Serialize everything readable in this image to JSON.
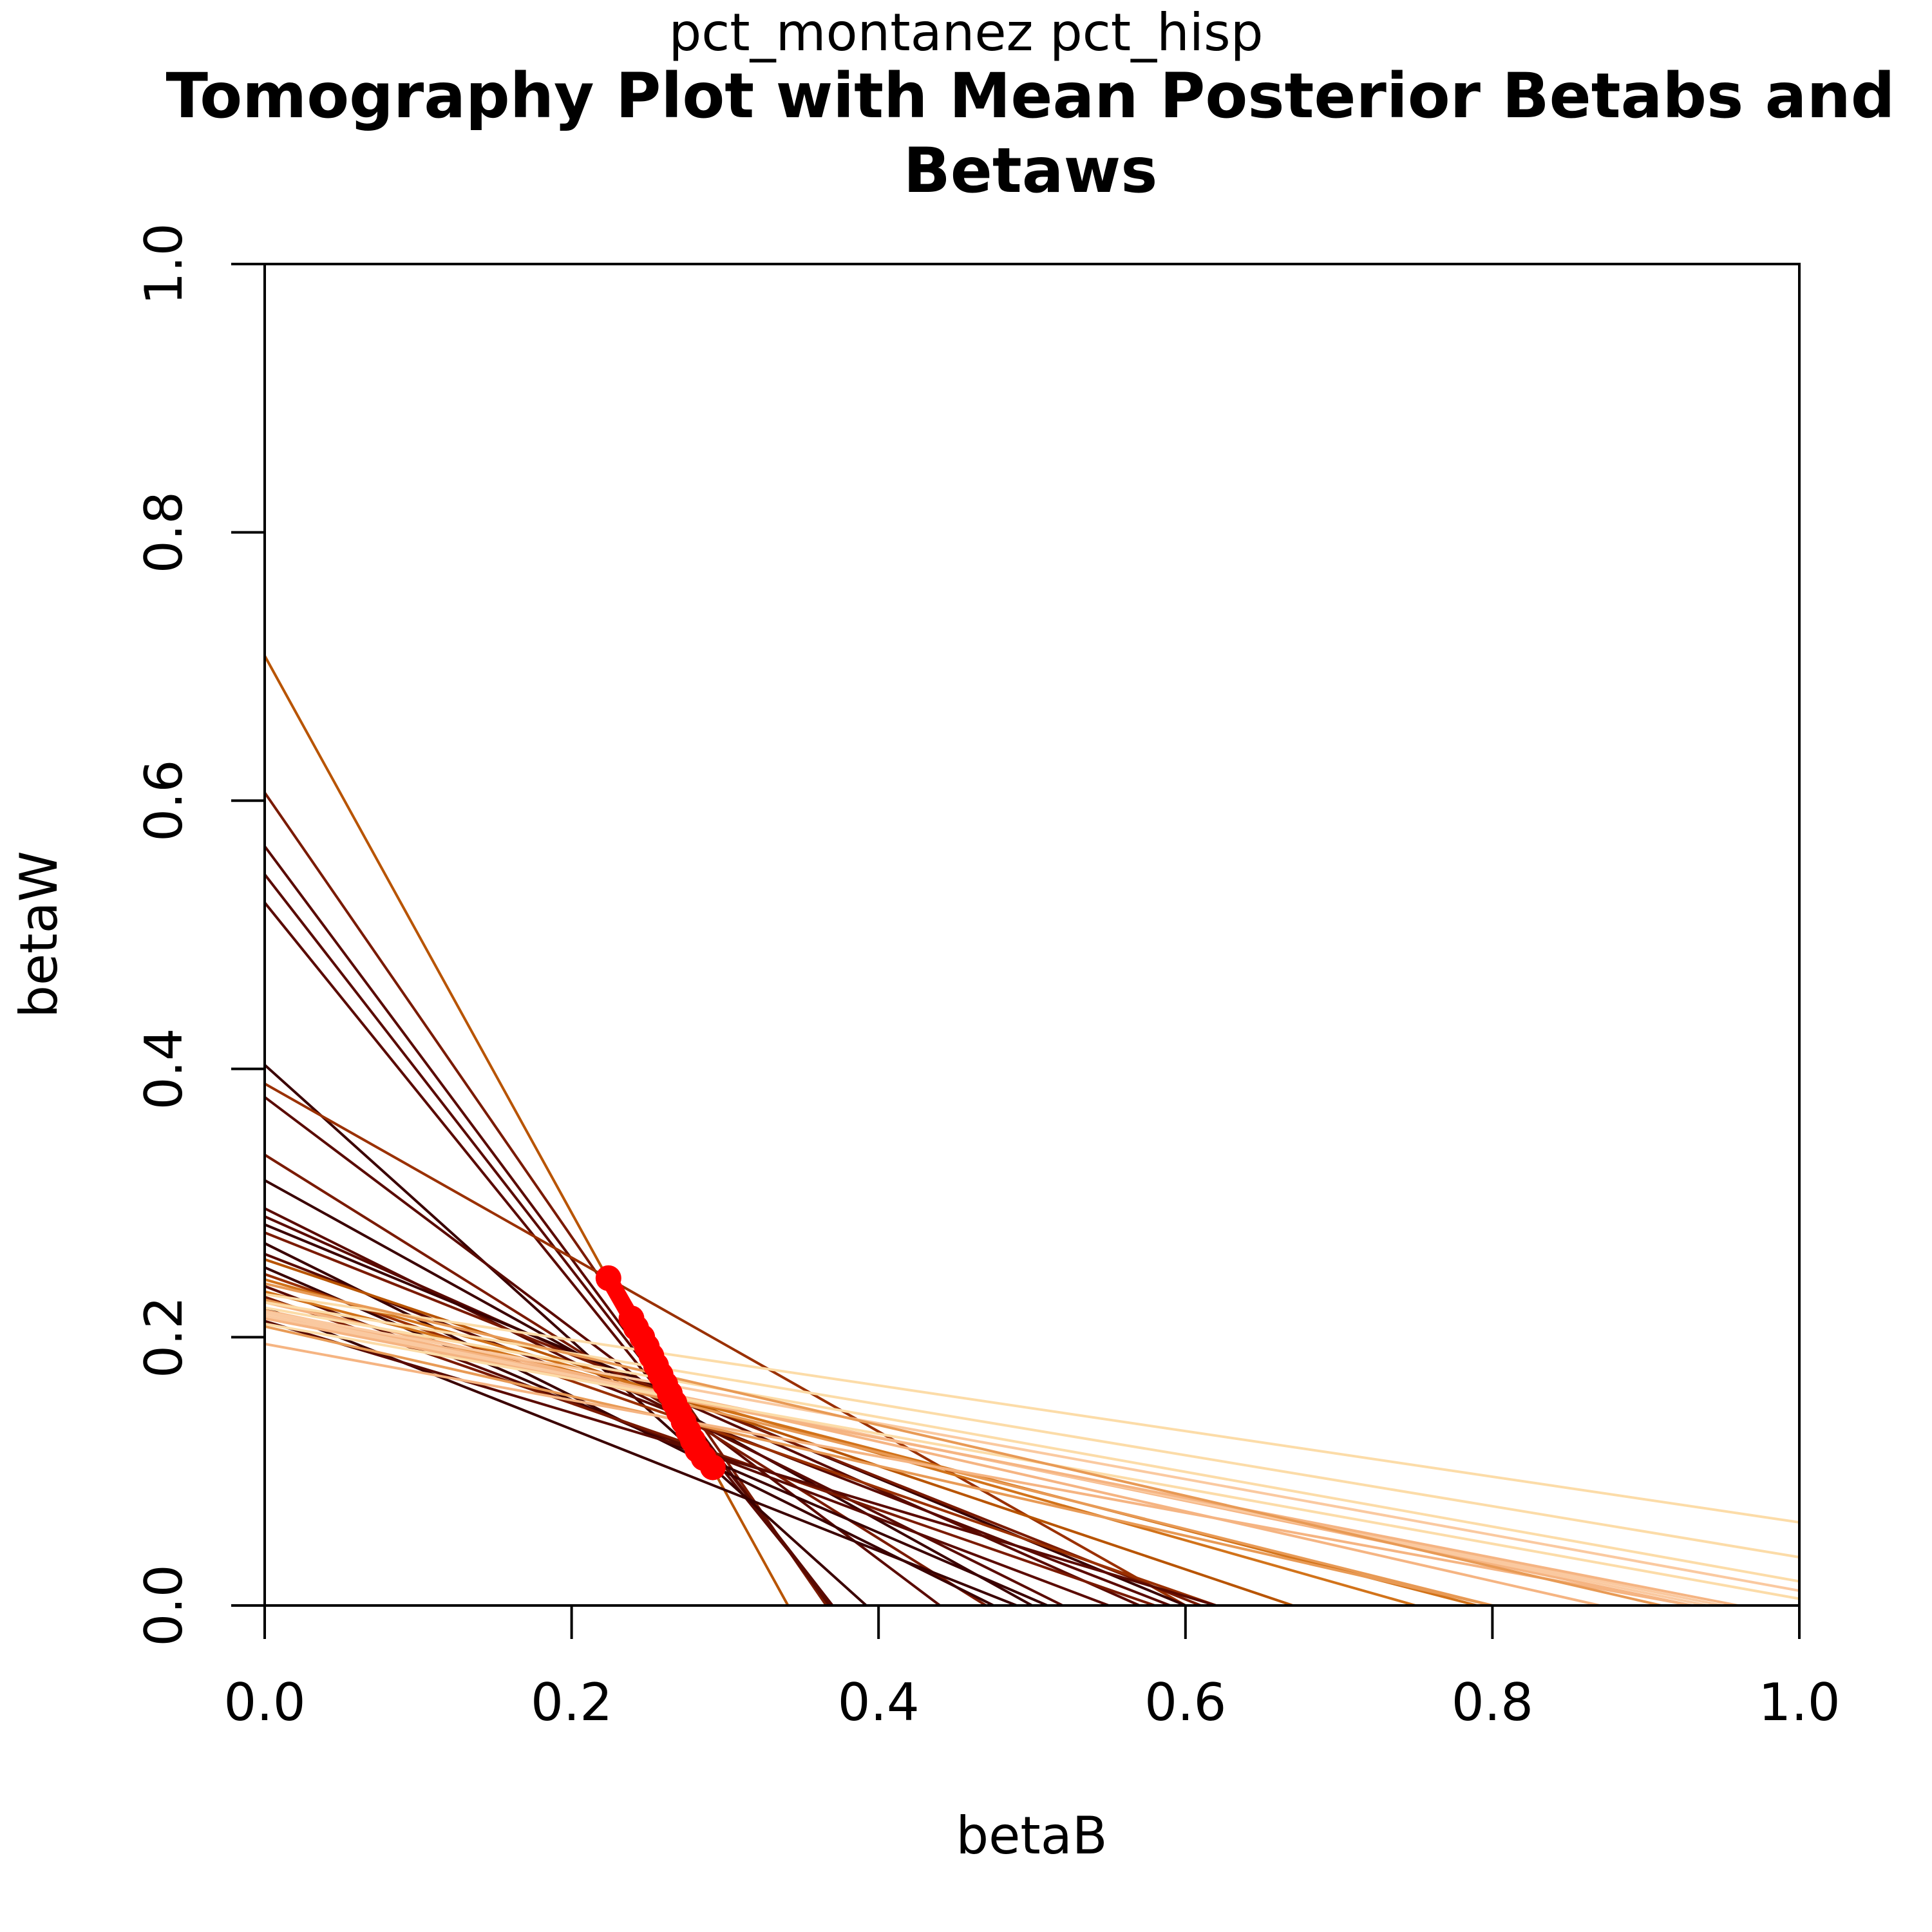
{
  "chart_data": {
    "type": "line",
    "subtitle": "pct_montanez pct_hisp",
    "title_lines": [
      "Tomography Plot with Mean Posterior Betabs and",
      "Betaws"
    ],
    "xlabel": "betaB",
    "ylabel": "betaW",
    "xlim": [
      0,
      1
    ],
    "ylim": [
      0,
      1
    ],
    "x_ticks": [
      "0.0",
      "0.2",
      "0.4",
      "0.6",
      "0.8",
      "1.0"
    ],
    "y_ticks": [
      "0.0",
      "0.2",
      "0.4",
      "0.6",
      "0.8",
      "1.0"
    ],
    "grid": false,
    "legend": "none",
    "line_colors": [
      "#3A0000",
      "#5A0A00",
      "#7A1A00",
      "#9A3000",
      "#B85400",
      "#D2731A",
      "#E89A55",
      "#F5B482",
      "#FAC9A0",
      "#FCDCA8"
    ],
    "point_color": "#FF0000",
    "tomography_lines": [
      {
        "x0": 0,
        "y0": 0.708,
        "x1": 0.341,
        "y1": 0,
        "c": 4
      },
      {
        "x0": 0,
        "y0": 0.606,
        "x1": 0.366,
        "y1": 0,
        "c": 2
      },
      {
        "x0": 0,
        "y0": 0.566,
        "x1": 0.368,
        "y1": 0,
        "c": 1
      },
      {
        "x0": 0,
        "y0": 0.545,
        "x1": 0.37,
        "y1": 0,
        "c": 1
      },
      {
        "x0": 0,
        "y0": 0.524,
        "x1": 0.37,
        "y1": 0,
        "c": 1
      },
      {
        "x0": 0,
        "y0": 0.403,
        "x1": 0.392,
        "y1": 0,
        "c": 0
      },
      {
        "x0": 0,
        "y0": 0.389,
        "x1": 0.6,
        "y1": 0,
        "c": 3
      },
      {
        "x0": 0,
        "y0": 0.379,
        "x1": 0.44,
        "y1": 0,
        "c": 1
      },
      {
        "x0": 0,
        "y0": 0.336,
        "x1": 0.47,
        "y1": 0,
        "c": 2
      },
      {
        "x0": 0,
        "y0": 0.317,
        "x1": 0.5,
        "y1": 0,
        "c": 0
      },
      {
        "x0": 0,
        "y0": 0.296,
        "x1": 0.52,
        "y1": 0,
        "c": 1
      },
      {
        "x0": 0,
        "y0": 0.29,
        "x1": 0.57,
        "y1": 0,
        "c": 1
      },
      {
        "x0": 0,
        "y0": 0.284,
        "x1": 0.6,
        "y1": 0,
        "c": 0
      },
      {
        "x0": 0,
        "y0": 0.278,
        "x1": 0.61,
        "y1": 0,
        "c": 2
      },
      {
        "x0": 0,
        "y0": 0.27,
        "x1": 0.475,
        "y1": 0,
        "c": 0
      },
      {
        "x0": 0,
        "y0": 0.262,
        "x1": 0.59,
        "y1": 0,
        "c": 1
      },
      {
        "x0": 0,
        "y0": 0.258,
        "x1": 0.67,
        "y1": 0,
        "c": 4
      },
      {
        "x0": 0,
        "y0": 0.252,
        "x1": 0.51,
        "y1": 0,
        "c": 0
      },
      {
        "x0": 0,
        "y0": 0.247,
        "x1": 0.62,
        "y1": 0,
        "c": 3
      },
      {
        "x0": 0,
        "y0": 0.243,
        "x1": 0.75,
        "y1": 0,
        "c": 5
      },
      {
        "x0": 0,
        "y0": 0.238,
        "x1": 0.55,
        "y1": 0,
        "c": 1
      },
      {
        "x0": 0,
        "y0": 0.234,
        "x1": 0.79,
        "y1": 0,
        "c": 5
      },
      {
        "x0": 0,
        "y0": 0.23,
        "x1": 0.58,
        "y1": 0,
        "c": 2
      },
      {
        "x0": 0,
        "y0": 0.228,
        "x1": 0.8,
        "y1": 0,
        "c": 6
      },
      {
        "x0": 0,
        "y0": 0.226,
        "x1": 0.87,
        "y1": 0,
        "c": 7
      },
      {
        "x0": 0,
        "y0": 0.222,
        "x1": 0.49,
        "y1": 0,
        "c": 0
      },
      {
        "x0": 0,
        "y0": 0.22,
        "x1": 0.93,
        "y1": 0,
        "c": 7
      },
      {
        "x0": 0,
        "y0": 0.218,
        "x1": 0.94,
        "y1": 0,
        "c": 8
      },
      {
        "x0": 0,
        "y0": 0.216,
        "x1": 0.95,
        "y1": 0,
        "c": 8
      },
      {
        "x0": 0,
        "y0": 0.214,
        "x1": 0.96,
        "y1": 0,
        "c": 7
      },
      {
        "x0": 0,
        "y0": 0.212,
        "x1": 0.62,
        "y1": 0,
        "c": 1
      },
      {
        "x0": 0,
        "y0": 0.21,
        "x1": 1.0,
        "y1": 0.005,
        "c": 9
      },
      {
        "x0": 0,
        "y0": 0.208,
        "x1": 0.8,
        "y1": 0,
        "c": 6
      },
      {
        "x0": 0,
        "y0": 0.232,
        "x1": 1.0,
        "y1": 0.062,
        "c": 9
      },
      {
        "x0": 0,
        "y0": 0.226,
        "x1": 1.0,
        "y1": 0.036,
        "c": 9
      },
      {
        "x0": 0,
        "y0": 0.222,
        "x1": 1.0,
        "y1": 0.018,
        "c": 9
      },
      {
        "x0": 0,
        "y0": 0.219,
        "x1": 1.0,
        "y1": 0.011,
        "c": 8
      },
      {
        "x0": 0,
        "y0": 0.195,
        "x1": 0.93,
        "y1": 0,
        "c": 7
      },
      {
        "x0": 0,
        "y0": 0.24,
        "x1": 0.91,
        "y1": 0,
        "c": 6
      }
    ],
    "mean_points": [
      {
        "x": 0.224,
        "y": 0.244
      },
      {
        "x": 0.239,
        "y": 0.214
      },
      {
        "x": 0.242,
        "y": 0.207
      },
      {
        "x": 0.246,
        "y": 0.2
      },
      {
        "x": 0.249,
        "y": 0.193
      },
      {
        "x": 0.252,
        "y": 0.186
      },
      {
        "x": 0.255,
        "y": 0.179
      },
      {
        "x": 0.258,
        "y": 0.172
      },
      {
        "x": 0.261,
        "y": 0.165
      },
      {
        "x": 0.264,
        "y": 0.158
      },
      {
        "x": 0.267,
        "y": 0.151
      },
      {
        "x": 0.27,
        "y": 0.144
      },
      {
        "x": 0.273,
        "y": 0.137
      },
      {
        "x": 0.276,
        "y": 0.13
      },
      {
        "x": 0.279,
        "y": 0.123
      },
      {
        "x": 0.282,
        "y": 0.116
      },
      {
        "x": 0.286,
        "y": 0.11
      },
      {
        "x": 0.292,
        "y": 0.103
      }
    ]
  }
}
